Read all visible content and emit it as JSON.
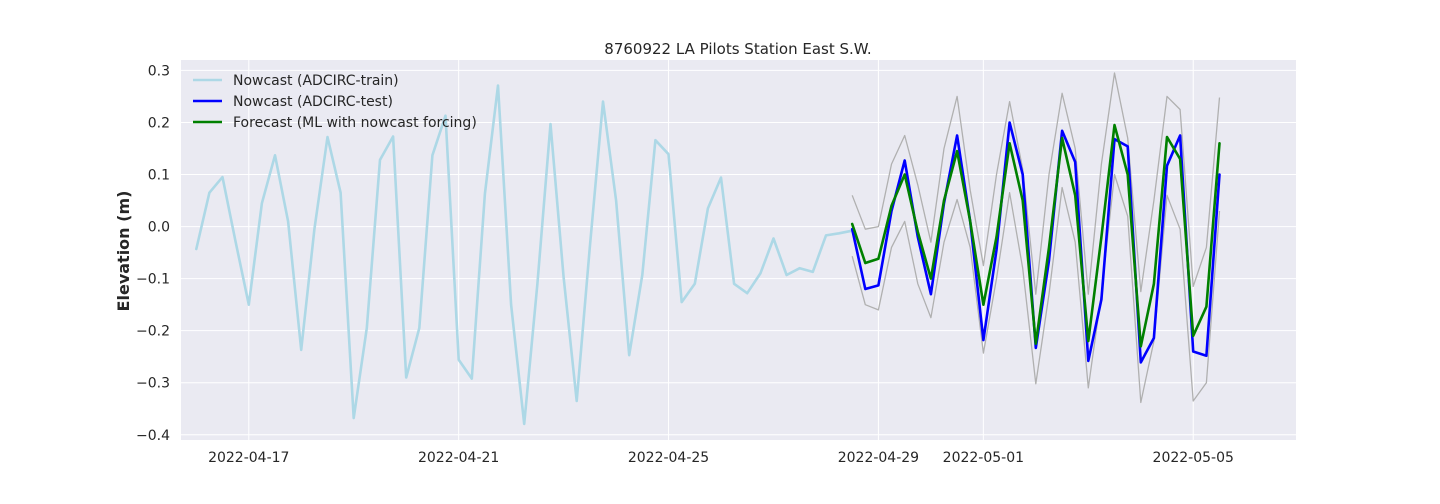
{
  "chart_data": {
    "type": "line",
    "title": "8760922 LA Pilots Station East S.W.",
    "xlabel": "",
    "ylabel": "Elevation (m)",
    "xlim": [
      "2022-04-15T17:00",
      "2022-05-06T23:00"
    ],
    "ylim": [
      -0.41,
      0.32
    ],
    "x_ticks": [
      "2022-04-17",
      "2022-04-21",
      "2022-04-25",
      "2022-04-29",
      "2022-05-01",
      "2022-05-05"
    ],
    "y_ticks": [
      -0.4,
      -0.3,
      -0.2,
      -0.1,
      0.0,
      0.1,
      0.2,
      0.3
    ],
    "y_tick_labels": [
      "−0.4",
      "−0.3",
      "−0.2",
      "−0.1",
      "0.0",
      "0.1",
      "0.2",
      "0.3"
    ],
    "grid": true,
    "legend_position": "top-left",
    "background": "#EAEAF2",
    "series": [
      {
        "name": "Nowcast (ADCIRC-train)",
        "color": "#ADD8E6",
        "x": [
          "2022-04-16T00:00",
          "2022-04-16T06:00",
          "2022-04-16T12:00",
          "2022-04-16T18:00",
          "2022-04-17T00:00",
          "2022-04-17T06:00",
          "2022-04-17T12:00",
          "2022-04-17T18:00",
          "2022-04-18T00:00",
          "2022-04-18T06:00",
          "2022-04-18T12:00",
          "2022-04-18T18:00",
          "2022-04-19T00:00",
          "2022-04-19T06:00",
          "2022-04-19T12:00",
          "2022-04-19T18:00",
          "2022-04-20T00:00",
          "2022-04-20T06:00",
          "2022-04-20T12:00",
          "2022-04-20T18:00",
          "2022-04-21T00:00",
          "2022-04-21T06:00",
          "2022-04-21T12:00",
          "2022-04-21T18:00",
          "2022-04-22T00:00",
          "2022-04-22T06:00",
          "2022-04-22T12:00",
          "2022-04-22T18:00",
          "2022-04-23T00:00",
          "2022-04-23T06:00",
          "2022-04-23T12:00",
          "2022-04-23T18:00",
          "2022-04-24T00:00",
          "2022-04-24T06:00",
          "2022-04-24T12:00",
          "2022-04-24T18:00",
          "2022-04-25T00:00",
          "2022-04-25T06:00",
          "2022-04-25T12:00",
          "2022-04-25T18:00",
          "2022-04-26T00:00",
          "2022-04-26T06:00",
          "2022-04-26T12:00",
          "2022-04-26T18:00",
          "2022-04-27T00:00",
          "2022-04-27T06:00",
          "2022-04-27T12:00",
          "2022-04-27T18:00",
          "2022-04-28T00:00",
          "2022-04-28T06:00",
          "2022-04-28T12:00"
        ],
        "y": [
          -0.043,
          0.065,
          0.095,
          -0.03,
          -0.15,
          0.045,
          0.137,
          0.01,
          -0.237,
          -0.005,
          0.172,
          0.065,
          -0.368,
          -0.195,
          0.128,
          0.173,
          -0.29,
          -0.195,
          0.137,
          0.213,
          -0.256,
          -0.292,
          0.063,
          0.271,
          -0.15,
          -0.379,
          -0.11,
          0.197,
          -0.097,
          -0.335,
          -0.04,
          0.24,
          0.05,
          -0.247,
          -0.093,
          0.166,
          0.139,
          -0.145,
          -0.11,
          0.035,
          0.094,
          -0.11,
          -0.128,
          -0.09,
          -0.023,
          -0.093,
          -0.08,
          -0.087,
          -0.017,
          -0.013,
          -0.008
        ]
      },
      {
        "name": "Nowcast (ADCIRC-test)",
        "color": "#0000FF",
        "x": [
          "2022-04-28T12:00",
          "2022-04-28T18:00",
          "2022-04-29T00:00",
          "2022-04-29T06:00",
          "2022-04-29T12:00",
          "2022-04-29T18:00",
          "2022-04-30T00:00",
          "2022-04-30T06:00",
          "2022-04-30T12:00",
          "2022-04-30T18:00",
          "2022-05-01T00:00",
          "2022-05-01T06:00",
          "2022-05-01T12:00",
          "2022-05-01T18:00",
          "2022-05-02T00:00",
          "2022-05-02T06:00",
          "2022-05-02T12:00",
          "2022-05-02T18:00",
          "2022-05-03T00:00",
          "2022-05-03T06:00",
          "2022-05-03T12:00",
          "2022-05-03T18:00",
          "2022-05-04T00:00",
          "2022-05-04T06:00",
          "2022-05-04T12:00",
          "2022-05-04T18:00",
          "2022-05-05T00:00",
          "2022-05-05T06:00",
          "2022-05-05T12:00"
        ],
        "y": [
          -0.005,
          -0.12,
          -0.113,
          0.03,
          0.127,
          -0.02,
          -0.13,
          0.045,
          0.175,
          0.01,
          -0.218,
          -0.045,
          0.2,
          0.1,
          -0.233,
          -0.065,
          0.184,
          0.124,
          -0.258,
          -0.14,
          0.168,
          0.154,
          -0.261,
          -0.214,
          0.117,
          0.175,
          -0.24,
          -0.248,
          0.1
        ]
      },
      {
        "name": "Forecast (ML with nowcast forcing)",
        "color": "#008000",
        "x": [
          "2022-04-28T12:00",
          "2022-04-28T18:00",
          "2022-04-29T00:00",
          "2022-04-29T06:00",
          "2022-04-29T12:00",
          "2022-04-29T18:00",
          "2022-04-30T00:00",
          "2022-04-30T06:00",
          "2022-04-30T12:00",
          "2022-04-30T18:00",
          "2022-05-01T00:00",
          "2022-05-01T06:00",
          "2022-05-01T12:00",
          "2022-05-01T18:00",
          "2022-05-02T00:00",
          "2022-05-02T06:00",
          "2022-05-02T12:00",
          "2022-05-02T18:00",
          "2022-05-03T00:00",
          "2022-05-03T06:00",
          "2022-05-03T12:00",
          "2022-05-03T18:00",
          "2022-05-04T00:00",
          "2022-05-04T06:00",
          "2022-05-04T12:00",
          "2022-05-04T18:00",
          "2022-05-05T00:00",
          "2022-05-05T06:00",
          "2022-05-05T12:00"
        ],
        "y": [
          0.005,
          -0.07,
          -0.062,
          0.04,
          0.1,
          -0.01,
          -0.1,
          0.05,
          0.145,
          0.01,
          -0.15,
          -0.02,
          0.16,
          0.05,
          -0.225,
          -0.04,
          0.17,
          0.06,
          -0.22,
          -0.02,
          0.195,
          0.1,
          -0.23,
          -0.11,
          0.172,
          0.13,
          -0.21,
          -0.154,
          0.16
        ]
      }
    ],
    "bounds": {
      "color": "#B0B0B0",
      "x": [
        "2022-04-28T12:00",
        "2022-04-28T18:00",
        "2022-04-29T00:00",
        "2022-04-29T06:00",
        "2022-04-29T12:00",
        "2022-04-29T18:00",
        "2022-04-30T00:00",
        "2022-04-30T06:00",
        "2022-04-30T12:00",
        "2022-04-30T18:00",
        "2022-05-01T00:00",
        "2022-05-01T06:00",
        "2022-05-01T12:00",
        "2022-05-01T18:00",
        "2022-05-02T00:00",
        "2022-05-02T06:00",
        "2022-05-02T12:00",
        "2022-05-02T18:00",
        "2022-05-03T00:00",
        "2022-05-03T06:00",
        "2022-05-03T12:00",
        "2022-05-03T18:00",
        "2022-05-04T00:00",
        "2022-05-04T06:00",
        "2022-05-04T12:00",
        "2022-05-04T18:00",
        "2022-05-05T00:00",
        "2022-05-05T06:00",
        "2022-05-05T12:00"
      ],
      "upper": [
        0.06,
        -0.005,
        0.0,
        0.12,
        0.175,
        0.08,
        -0.03,
        0.15,
        0.25,
        0.07,
        -0.075,
        0.1,
        0.24,
        0.11,
        -0.13,
        0.1,
        0.256,
        0.15,
        -0.13,
        0.12,
        0.295,
        0.17,
        -0.125,
        0.05,
        0.25,
        0.225,
        -0.115,
        -0.04,
        0.248
      ],
      "lower": [
        -0.057,
        -0.15,
        -0.16,
        -0.04,
        0.01,
        -0.11,
        -0.175,
        -0.03,
        0.052,
        -0.04,
        -0.243,
        -0.1,
        0.065,
        -0.08,
        -0.302,
        -0.13,
        0.075,
        -0.03,
        -0.31,
        -0.13,
        0.1,
        0.02,
        -0.338,
        -0.22,
        0.06,
        -0.005,
        -0.335,
        -0.3,
        0.03
      ]
    }
  }
}
